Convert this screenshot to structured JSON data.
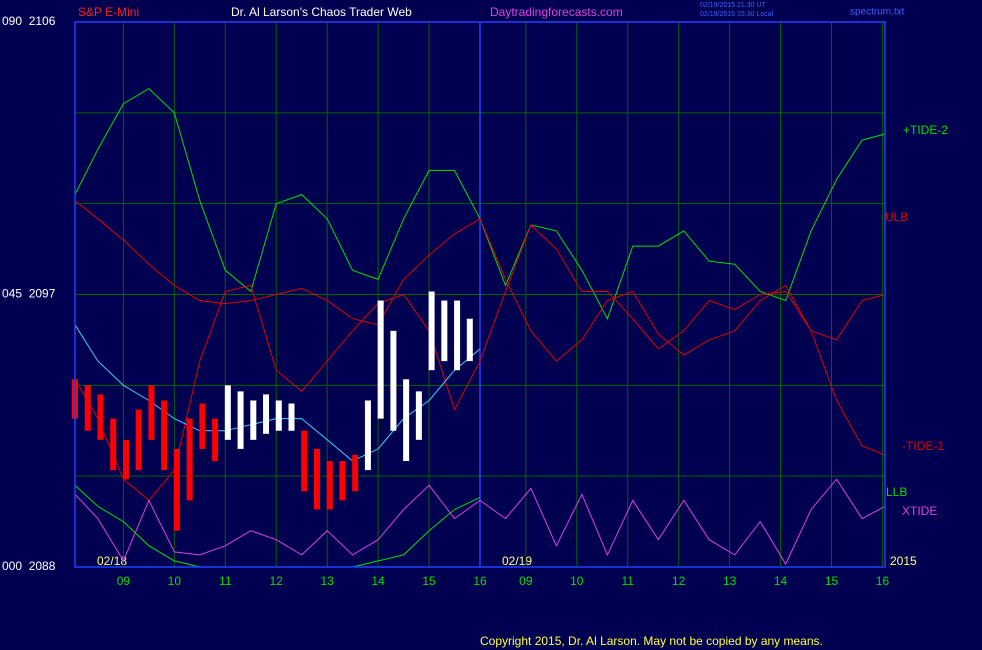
{
  "chart_data": {
    "type": "line",
    "title": "Dr. Al Larson's Chaos Trader Web",
    "instrument": "S&P E-Mini",
    "website": "Daytradingforecasts.com",
    "timestamps": [
      "02/19/2015 21:30 UT",
      "02/19/2015 15:30 Local"
    ],
    "file": "spectrum.txt",
    "copyright": "Copyright 2015, Dr. Al Larson. May not be copied by any means.",
    "date_labels": [
      "02/18",
      "02/19"
    ],
    "year": "2015",
    "xlim": [
      8.05,
      23.95
    ],
    "ylim": [
      2088,
      2106
    ],
    "yticks": [
      {
        "value": 2088,
        "label": "000  2088"
      },
      {
        "value": 2097,
        "label": "045  2097"
      },
      {
        "value": 2106,
        "label": "090  2106"
      }
    ],
    "ygrid": [
      2091,
      2094,
      2100,
      2103
    ],
    "xticks": [
      {
        "value": 9,
        "label": "09"
      },
      10,
      11,
      12,
      13,
      14,
      15,
      16,
      {
        "value": 16.9,
        "label": "09"
      },
      {
        "value": 17.9,
        "label": "10"
      },
      {
        "value": 18.9,
        "label": "11"
      },
      {
        "value": 19.9,
        "label": "12"
      },
      {
        "value": 20.9,
        "label": "13"
      },
      {
        "value": 21.9,
        "label": "14"
      },
      {
        "value": 22.9,
        "label": "15"
      },
      {
        "value": 23.9,
        "label": "16"
      }
    ],
    "day_divider": 16,
    "grid": true,
    "x": [
      8.05,
      8.5,
      9,
      9.5,
      10,
      10.5,
      11,
      11.5,
      12,
      12.5,
      13,
      13.5,
      14,
      14.5,
      15,
      15.5,
      16,
      16.5,
      17,
      17.5,
      18,
      18.5,
      19,
      19.5,
      20,
      20.5,
      21,
      21.5,
      22,
      22.5,
      23,
      23.5,
      23.95
    ],
    "series": [
      {
        "name": "+TIDE-2",
        "color": "#00e000",
        "values": [
          2100.3,
          2101.8,
          2103.3,
          2103.8,
          2103.0,
          2100.1,
          2097.8,
          2097.1,
          2100.0,
          2100.3,
          2099.5,
          2097.8,
          2097.5,
          2099.5,
          2101.1,
          2101.1,
          2099.5,
          2097.3,
          2099.3,
          2099.1,
          2097.8,
          2096.2,
          2098.6,
          2098.6,
          2099.1,
          2098.1,
          2098.0,
          2097.1,
          2096.8,
          2099.1,
          2100.8,
          2102.1,
          2102.3
        ]
      },
      {
        "name": "ULB",
        "color": "#e00000",
        "values": [
          2094.2,
          2092.9,
          2090.9,
          2090.2,
          2091.2,
          2094.8,
          2097.1,
          2097.3,
          2094.5,
          2093.8,
          2094.8,
          2095.8,
          2096.7,
          2097.0,
          2095.8,
          2093.2,
          2094.8,
          2097.1,
          2099.3,
          2098.5,
          2097.1,
          2097.1,
          2096.2,
          2095.2,
          2095.8,
          2096.8,
          2096.5,
          2097.0,
          2097.1,
          2095.8,
          2095.5,
          2096.8,
          2097.0
        ]
      },
      {
        "name": "-TIDE-1",
        "color": "#e00000",
        "values": [
          2100.1,
          2099.5,
          2098.8,
          2098.0,
          2097.3,
          2096.8,
          2096.7,
          2096.8,
          2097.0,
          2097.2,
          2096.8,
          2096.2,
          2096.0,
          2097.5,
          2098.3,
          2099.0,
          2099.5,
          2097.5,
          2095.8,
          2094.8,
          2095.5,
          2096.8,
          2097.1,
          2095.7,
          2095.0,
          2095.5,
          2095.8,
          2096.8,
          2097.3,
          2095.8,
          2093.5,
          2092.0,
          2091.7
        ]
      },
      {
        "name": "LLB",
        "color": "#00e000",
        "values": [
          2090.7,
          2090.0,
          2089.5,
          2088.7,
          2088.2,
          2088.0,
          2088.0,
          2088.0,
          2088.0,
          2088.0,
          2088.0,
          2088.0,
          2088.2,
          2088.4,
          2089.2,
          2089.9,
          2090.3,
          null,
          null,
          null,
          null,
          null,
          null,
          null,
          null,
          null,
          null,
          null,
          null,
          null,
          null,
          null,
          null
        ]
      },
      {
        "name": "XTIDE",
        "color": "#e040e0",
        "values": [
          2090.4,
          2089.6,
          2088.2,
          2090.2,
          2088.5,
          2088.4,
          2088.7,
          2089.2,
          2088.9,
          2088.4,
          2089.2,
          2088.4,
          2088.9,
          2089.9,
          2090.7,
          2089.6,
          2090.2,
          2089.6,
          2090.6,
          2088.7,
          2090.4,
          2088.4,
          2090.2,
          2088.9,
          2090.2,
          2088.9,
          2088.4,
          2089.5,
          2088.1,
          2089.9,
          2090.9,
          2089.6,
          2090.0
        ]
      },
      {
        "color": "#40d0ff",
        "values": [
          2096.0,
          2094.8,
          2094.0,
          2093.5,
          2092.9,
          2092.5,
          2092.5,
          2092.7,
          2092.9,
          2092.9,
          2092.2,
          2091.5,
          2091.9,
          2092.9,
          2093.5,
          2094.5,
          2095.2,
          null,
          null,
          null,
          null,
          null,
          null,
          null,
          null,
          null,
          null,
          null,
          null,
          null,
          null,
          null,
          null
        ]
      }
    ],
    "bars": [
      {
        "x": 8.05,
        "high": 2094.2,
        "low": 2092.9,
        "color": "#ff0000"
      },
      {
        "x": 8.3,
        "high": 2094.0,
        "low": 2092.5,
        "color": "#ff0000"
      },
      {
        "x": 8.55,
        "high": 2093.7,
        "low": 2092.2,
        "color": "#ff0000"
      },
      {
        "x": 8.8,
        "high": 2092.9,
        "low": 2091.2,
        "color": "#ff0000"
      },
      {
        "x": 9.05,
        "high": 2092.2,
        "low": 2090.9,
        "color": "#ff0000"
      },
      {
        "x": 9.3,
        "high": 2093.2,
        "low": 2091.2,
        "color": "#ff0000"
      },
      {
        "x": 9.55,
        "high": 2094.0,
        "low": 2092.2,
        "color": "#ff0000"
      },
      {
        "x": 9.8,
        "high": 2093.5,
        "low": 2091.2,
        "color": "#ff0000"
      },
      {
        "x": 10.05,
        "high": 2091.9,
        "low": 2089.2,
        "color": "#ff0000"
      },
      {
        "x": 10.3,
        "high": 2092.9,
        "low": 2090.2,
        "color": "#ff0000"
      },
      {
        "x": 10.55,
        "high": 2093.4,
        "low": 2091.9,
        "color": "#ff0000"
      },
      {
        "x": 10.8,
        "high": 2092.9,
        "low": 2091.5,
        "color": "#ff0000"
      },
      {
        "x": 11.05,
        "high": 2094.0,
        "low": 2092.2,
        "color": "#ffffff"
      },
      {
        "x": 11.3,
        "high": 2093.8,
        "low": 2091.9,
        "color": "#ffffff"
      },
      {
        "x": 11.55,
        "high": 2093.5,
        "low": 2092.2,
        "color": "#ffffff"
      },
      {
        "x": 11.8,
        "high": 2093.7,
        "low": 2092.4,
        "color": "#ffffff"
      },
      {
        "x": 12.05,
        "high": 2093.5,
        "low": 2092.5,
        "color": "#ffffff"
      },
      {
        "x": 12.3,
        "high": 2093.4,
        "low": 2092.5,
        "color": "#ffffff"
      },
      {
        "x": 12.55,
        "high": 2092.5,
        "low": 2090.5,
        "color": "#ff0000"
      },
      {
        "x": 12.8,
        "high": 2091.9,
        "low": 2089.9,
        "color": "#ff0000"
      },
      {
        "x": 13.05,
        "high": 2091.5,
        "low": 2089.9,
        "color": "#ff0000"
      },
      {
        "x": 13.3,
        "high": 2091.5,
        "low": 2090.2,
        "color": "#ff0000"
      },
      {
        "x": 13.55,
        "high": 2091.7,
        "low": 2090.5,
        "color": "#ff0000"
      },
      {
        "x": 13.8,
        "high": 2093.5,
        "low": 2091.2,
        "color": "#ffffff"
      },
      {
        "x": 14.05,
        "high": 2096.8,
        "low": 2092.9,
        "color": "#ffffff"
      },
      {
        "x": 14.3,
        "high": 2095.8,
        "low": 2092.5,
        "color": "#ffffff"
      },
      {
        "x": 14.55,
        "high": 2094.2,
        "low": 2091.5,
        "color": "#ffffff"
      },
      {
        "x": 14.8,
        "high": 2093.8,
        "low": 2092.2,
        "color": "#ffffff"
      },
      {
        "x": 15.05,
        "high": 2097.1,
        "low": 2094.5,
        "color": "#ffffff"
      },
      {
        "x": 15.3,
        "high": 2096.8,
        "low": 2094.8,
        "color": "#ffffff"
      },
      {
        "x": 15.55,
        "high": 2096.8,
        "low": 2094.5,
        "color": "#ffffff"
      },
      {
        "x": 15.8,
        "high": 2096.2,
        "low": 2094.8,
        "color": "#ffffff"
      }
    ]
  }
}
